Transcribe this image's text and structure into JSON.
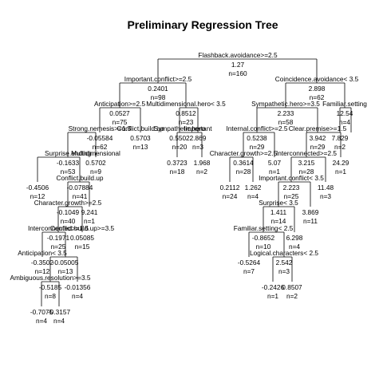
{
  "title": "Preliminary Regression Tree",
  "nodes": [
    {
      "id": "root",
      "parent": null,
      "split": "Flashback.avoidance>=2.5",
      "value": "1.27",
      "n": "n=160"
    },
    {
      "id": "n1",
      "parent": "root",
      "split": "Important.conflict>=2.5",
      "value": "0.2401",
      "n": "n=98"
    },
    {
      "id": "n2",
      "parent": "root",
      "split": "Coincidence.avoidance< 3.5",
      "value": "2.898",
      "n": "n=62"
    },
    {
      "id": "n3",
      "parent": "n1",
      "split": "Anticipation>=2.5",
      "value": "0.0527",
      "n": "n=75"
    },
    {
      "id": "n4",
      "parent": "n1",
      "split": "Multidimensional.hero< 3.5",
      "value": "0.8512",
      "n": "n=23"
    },
    {
      "id": "n5",
      "parent": "n2",
      "split": "Sympathetic.hero>=3.5",
      "value": "2.233",
      "n": "n=58"
    },
    {
      "id": "n6",
      "parent": "n2",
      "split": "Familiar.setting",
      "value": "12.54",
      "n": "n=4"
    },
    {
      "id": "n7",
      "parent": "n3",
      "split": "Strong.nemesis>=1.5",
      "value": "-0.05584",
      "n": "n=62"
    },
    {
      "id": "n8",
      "parent": "n3",
      "split": "Conflict.build.up",
      "value": "0.5703",
      "n": "n=13"
    },
    {
      "id": "n9",
      "parent": "n4",
      "split": "Sympathetic.hero",
      "value": "0.5502",
      "n": "n=20"
    },
    {
      "id": "n10",
      "parent": "n4",
      "split": "Important",
      "value": "2.869",
      "n": "n=3"
    },
    {
      "id": "n11",
      "parent": "n5",
      "split": "Internal.conflict>=2.5",
      "value": "0.5238",
      "n": "n=29"
    },
    {
      "id": "n12",
      "parent": "n5",
      "split": "Clear.premise>=1.5",
      "value": "3.942",
      "n": "n=29"
    },
    {
      "id": "n13",
      "parent": "n6",
      "split": "",
      "value": "7.829",
      "n": "n=2"
    },
    {
      "id": "n14",
      "parent": "n6",
      "split": "",
      "value": "",
      "n": ""
    },
    {
      "id": "n15",
      "parent": "n7",
      "split": "Surprise.ending",
      "value": "-0.1633",
      "n": "n=53"
    },
    {
      "id": "n16",
      "parent": "n7",
      "split": "Multidimensional",
      "value": "0.5702",
      "n": "n=9"
    },
    {
      "id": "n17",
      "parent": "n9",
      "split": "",
      "value": "0.3723",
      "n": "n=18"
    },
    {
      "id": "n18",
      "parent": "n9",
      "split": "",
      "value": "1.968",
      "n": "n=2"
    },
    {
      "id": "n19",
      "parent": "n11",
      "split": "Character.growth>=2.5",
      "value": "0.3614",
      "n": "n=28"
    },
    {
      "id": "n20",
      "parent": "n11",
      "split": "",
      "value": "5.07",
      "n": "n=1"
    },
    {
      "id": "n21",
      "parent": "n12",
      "split": "Interconnected>=2.5",
      "value": "3.215",
      "n": "n=28"
    },
    {
      "id": "n22",
      "parent": "n12",
      "split": "",
      "value": "24.29",
      "n": "n=1"
    },
    {
      "id": "n23",
      "parent": "n15",
      "split": "",
      "value": "-0.4506",
      "n": "n=12"
    },
    {
      "id": "n24",
      "parent": "n15",
      "split": "Conflict.build.up",
      "value": "-0.07884",
      "n": "n=41"
    },
    {
      "id": "n25",
      "parent": "n19",
      "split": "",
      "value": "0.2112",
      "n": "n=24"
    },
    {
      "id": "n26",
      "parent": "n19",
      "split": "",
      "value": "1.262",
      "n": "n=4"
    },
    {
      "id": "n27",
      "parent": "n21",
      "split": "Important.conflict< 3.5",
      "value": "2.223",
      "n": "n=25"
    },
    {
      "id": "n28",
      "parent": "n21",
      "split": "",
      "value": "11.48",
      "n": "n=3"
    },
    {
      "id": "n29",
      "parent": "n24",
      "split": "Character.growth>=2.5",
      "value": "-0.1049",
      "n": "n=40"
    },
    {
      "id": "n30",
      "parent": "n24",
      "split": "",
      "value": "9.241",
      "n": "n=1"
    },
    {
      "id": "n31",
      "parent": "n27",
      "split": "Surprise< 3.5",
      "value": "1.411",
      "n": "n=14"
    },
    {
      "id": "n32",
      "parent": "n27",
      "split": "",
      "value": "3.869",
      "n": "n=11"
    },
    {
      "id": "n33",
      "parent": "n29",
      "split": "Interconnected>=1.5",
      "value": "-0.1971",
      "n": "n=25"
    },
    {
      "id": "n34",
      "parent": "n29",
      "split": "Conflict.build.up>=3.5",
      "value": "0.05085",
      "n": "n=15"
    },
    {
      "id": "n35",
      "parent": "n31",
      "split": "Familiar.setting< 2.5",
      "value": "-0.8652",
      "n": "n=10"
    },
    {
      "id": "n36",
      "parent": "n31",
      "split": "",
      "value": "6.298",
      "n": "n=4"
    },
    {
      "id": "n37",
      "parent": "n33",
      "split": "Anticipation< 3.5",
      "value": "-0.3502",
      "n": "n=12"
    },
    {
      "id": "n38",
      "parent": "n33",
      "split": "",
      "value": "-0.05005",
      "n": "n=13"
    },
    {
      "id": "n39",
      "parent": "n35",
      "split": "",
      "value": "-0.5264",
      "n": "n=7"
    },
    {
      "id": "n40",
      "parent": "n35",
      "split": "Logical.characters< 2.5",
      "value": "2.542",
      "n": "n=3"
    },
    {
      "id": "n41",
      "parent": "n37",
      "split": "Ambiguous.resolution>=3.5",
      "value": "-0.5185",
      "n": "n=8"
    },
    {
      "id": "n42",
      "parent": "n37",
      "split": "",
      "value": "-0.01356",
      "n": "n=4"
    },
    {
      "id": "n43",
      "parent": "n40",
      "split": "",
      "value": "-0.2426",
      "n": "n=1"
    },
    {
      "id": "n44",
      "parent": "n40",
      "split": "",
      "value": "0.8507",
      "n": "n=2"
    },
    {
      "id": "n45",
      "parent": "n41",
      "split": "",
      "value": "-0.7075",
      "n": "n=4"
    },
    {
      "id": "n46",
      "parent": "n41",
      "split": "",
      "value": "-0.3157",
      "n": "n=4"
    }
  ]
}
